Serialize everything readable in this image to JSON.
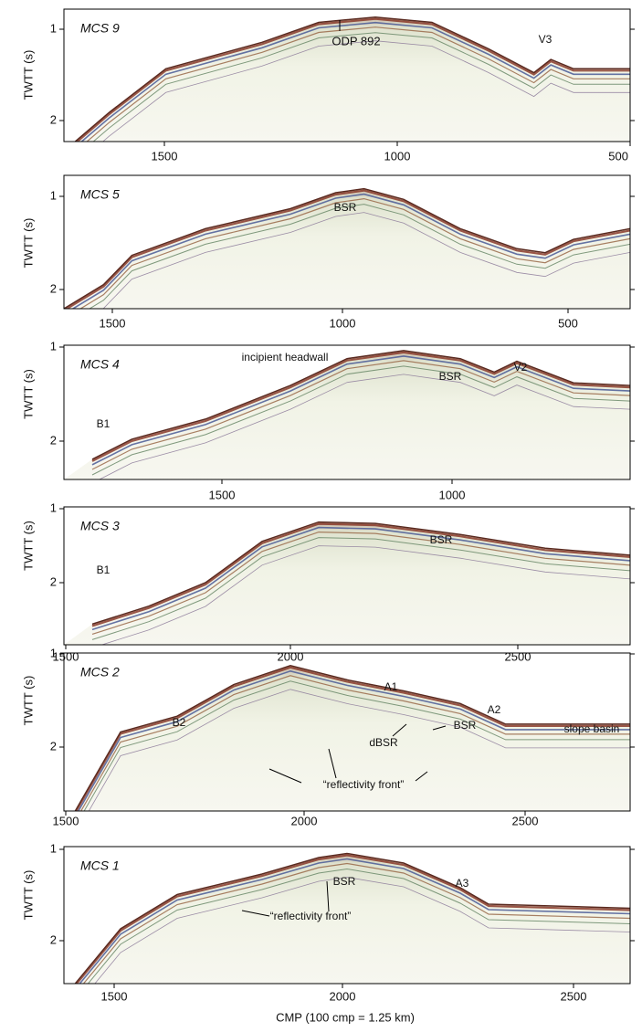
{
  "panels": [
    {
      "title": "MCS 9",
      "y_label": "TWTT (s)",
      "yticks": [
        "1",
        "2"
      ],
      "xticks": [
        "1500",
        "1000",
        "500"
      ],
      "annotations": [
        "ODP 892",
        "V3"
      ]
    },
    {
      "title": "MCS 5",
      "y_label": "TWTT (s)",
      "yticks": [
        "1",
        "2"
      ],
      "xticks": [
        "1500",
        "1000",
        "500"
      ],
      "annotations": [
        "BSR"
      ]
    },
    {
      "title": "MCS 4",
      "y_label": "TWTT (s)",
      "yticks": [
        "1",
        "2"
      ],
      "xticks": [
        "1500",
        "1000"
      ],
      "annotations": [
        "incipient headwall",
        "BSR",
        "V2",
        "B1"
      ]
    },
    {
      "title": "MCS 3",
      "y_label": "TWTT (s)",
      "yticks": [
        "1",
        "2"
      ],
      "xticks": [
        "1500",
        "2000",
        "2500"
      ],
      "annotations": [
        "BSR",
        "B1"
      ]
    },
    {
      "title": "MCS 2",
      "y_label": "TWTT (s)",
      "yticks": [
        "1",
        "2"
      ],
      "xticks": [
        "1500",
        "2000",
        "2500"
      ],
      "annotations": [
        "A1",
        "A2",
        "B2",
        "BSR",
        "dBSR",
        "slope basin",
        "“reflectivity front”"
      ]
    },
    {
      "title": "MCS 1",
      "y_label": "TWTT (s)",
      "yticks": [
        "1",
        "2"
      ],
      "xticks": [
        "1500",
        "2000",
        "2500"
      ],
      "annotations": [
        "BSR",
        "A3",
        "“reflectivity front”"
      ]
    }
  ],
  "x_label": "CMP (100 cmp = 1.25 km)"
}
